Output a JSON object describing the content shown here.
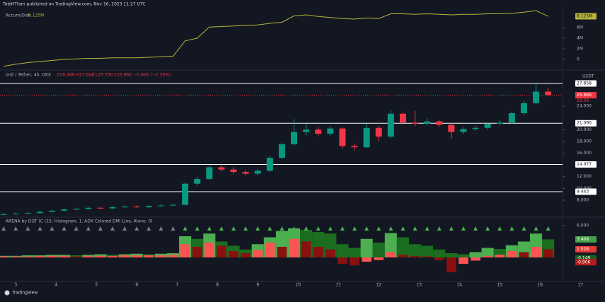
{
  "header": {
    "published": "TobiHTfam published on TradingView.com, Nov 16, 2023 11:27 UTC"
  },
  "chart_data": [
    {
      "type": "line",
      "legend": "Accum/Dist",
      "color": "#b8b43a",
      "x": [
        2.7,
        3.0,
        3.3,
        3.6,
        3.9,
        4.2,
        4.5,
        4.8,
        5.1,
        5.4,
        5.7,
        6.0,
        6.3,
        6.6,
        6.9,
        7.2,
        7.5,
        7.8,
        8.1,
        8.4,
        8.7,
        9.0,
        9.3,
        9.6,
        9.9,
        10.2,
        10.5,
        10.8,
        11.1,
        11.4,
        11.7,
        12.0,
        12.3,
        12.6,
        12.9,
        13.2,
        13.5,
        13.8,
        14.1,
        14.4,
        14.7,
        15.0,
        15.3,
        15.6,
        15.9,
        16.2
      ],
      "values": [
        -1300000,
        -900000,
        -600000,
        -400000,
        -200000,
        0,
        100000,
        200000,
        200000,
        300000,
        300000,
        300000,
        400000,
        500000,
        600000,
        3500000,
        4000000,
        6100000,
        6200000,
        6300000,
        6400000,
        6500000,
        6800000,
        7000000,
        8200000,
        8400000,
        8100000,
        7900000,
        7700000,
        7600000,
        7800000,
        7700000,
        8600000,
        8600000,
        8500000,
        8600000,
        8500000,
        8400000,
        8500000,
        8500000,
        8600000,
        8600000,
        8700000,
        8900000,
        9200000,
        8125000
      ],
      "last_value_label": "8.125M",
      "xlim": [
        2.61,
        17.61
      ],
      "ylim": [
        -1733333,
        9333333
      ],
      "yticks": [
        0,
        {
          "value": 2000000,
          "label": "2M"
        },
        {
          "value": 4000000,
          "label": "4M"
        },
        {
          "value": 6000000,
          "label": "6M"
        }
      ]
    },
    {
      "type": "candlestick",
      "legend": "ordi / Tether, 4h, OKX",
      "legend_ohlc": "O26.466 H27.048 L25.700 C25.860 −0.606 (−2.29%)",
      "currency": "USDT",
      "up_color": "#089981",
      "down_color": "#f23645",
      "x": [
        2.7,
        3.0,
        3.3,
        3.6,
        3.9,
        4.2,
        4.5,
        4.8,
        5.1,
        5.4,
        5.7,
        6.0,
        6.3,
        6.6,
        6.9,
        7.2,
        7.5,
        7.8,
        8.1,
        8.4,
        8.7,
        9.0,
        9.3,
        9.6,
        9.9,
        10.2,
        10.5,
        10.8,
        11.1,
        11.4,
        11.7,
        12.0,
        12.3,
        12.6,
        12.9,
        13.2,
        13.5,
        13.8,
        14.1,
        14.4,
        14.7,
        15.0,
        15.3,
        15.6,
        15.9,
        16.2
      ],
      "open": [
        5.5,
        5.6,
        5.7,
        5.8,
        6.0,
        6.2,
        6.4,
        6.5,
        6.7,
        6.6,
        6.8,
        6.9,
        6.8,
        7.0,
        7.1,
        7.2,
        10.8,
        11.6,
        13.6,
        13.2,
        12.8,
        12.5,
        13.0,
        15.2,
        17.5,
        19.6,
        20.0,
        19.3,
        20.2,
        17.2,
        17.0,
        20.3,
        18.8,
        22.7,
        21.2,
        21.0,
        21.4,
        20.8,
        19.6,
        20.1,
        20.3,
        21.0,
        21.2,
        22.8,
        24.5,
        26.466
      ],
      "high": [
        5.8,
        5.9,
        6.0,
        6.2,
        6.4,
        6.6,
        6.7,
        6.9,
        6.9,
        7.0,
        7.1,
        7.1,
        7.2,
        7.3,
        7.4,
        11.0,
        12.0,
        14.0,
        14.1,
        13.6,
        13.1,
        13.3,
        15.5,
        17.8,
        21.8,
        21.0,
        20.4,
        20.5,
        20.4,
        17.6,
        21.0,
        20.6,
        23.3,
        23.0,
        23.2,
        21.9,
        21.6,
        21.0,
        20.4,
        20.6,
        21.3,
        21.6,
        23.1,
        24.9,
        27.858,
        27.048
      ],
      "low": [
        5.4,
        5.5,
        5.6,
        5.7,
        5.9,
        6.1,
        6.3,
        6.4,
        6.5,
        6.5,
        6.7,
        6.7,
        6.7,
        6.9,
        7.0,
        7.1,
        10.5,
        11.4,
        12.9,
        12.5,
        12.2,
        12.2,
        12.8,
        15.0,
        17.3,
        19.0,
        18.9,
        19.0,
        16.8,
        16.5,
        16.8,
        18.0,
        18.5,
        20.9,
        20.6,
        20.7,
        20.5,
        18.5,
        19.3,
        19.8,
        20.0,
        20.7,
        21.0,
        22.5,
        24.3,
        25.7
      ],
      "close": [
        5.6,
        5.7,
        5.8,
        6.0,
        6.2,
        6.4,
        6.5,
        6.7,
        6.6,
        6.8,
        6.9,
        6.8,
        7.0,
        7.1,
        7.2,
        10.8,
        11.6,
        13.6,
        13.2,
        12.8,
        12.5,
        13.0,
        15.2,
        17.5,
        19.6,
        20.0,
        19.3,
        20.2,
        17.2,
        17.0,
        20.3,
        18.8,
        22.7,
        21.2,
        21.0,
        21.4,
        20.8,
        19.6,
        20.1,
        20.3,
        21.0,
        21.2,
        22.8,
        24.5,
        26.466,
        25.86
      ],
      "hline_color": "#ffffff",
      "hlines": [
        {
          "value": 27.858,
          "label": "27.858"
        },
        {
          "value": 21.09,
          "label": "21.090"
        },
        {
          "value": 14.077,
          "label": "14.077"
        },
        {
          "value": 9.443,
          "label": "9.443"
        }
      ],
      "current": {
        "value": 25.86,
        "label": "25.860",
        "countdown": "22:09"
      },
      "xlim": [
        2.61,
        17.61
      ],
      "ylim": [
        5.35,
        30.02
      ],
      "yticks": [
        {
          "value": 8,
          "label": "8.000"
        },
        {
          "value": 10,
          "label": "10.000"
        },
        {
          "value": 12,
          "label": "12.000"
        },
        {
          "value": 16,
          "label": "16.000"
        },
        {
          "value": 18,
          "label": "18.000"
        },
        {
          "value": 20,
          "label": "20.000"
        },
        {
          "value": 24,
          "label": "24.000"
        }
      ]
    },
    {
      "type": "bar",
      "legend": "ARENA by DGT (C (15, Histogram, 1, ADX Colored DMI Line, Alone, 0)",
      "x": [
        2.7,
        3.0,
        3.3,
        3.6,
        3.9,
        4.2,
        4.5,
        4.8,
        5.1,
        5.4,
        5.7,
        6.0,
        6.3,
        6.6,
        6.9,
        7.2,
        7.5,
        7.8,
        8.1,
        8.4,
        8.7,
        9.0,
        9.3,
        9.6,
        9.9,
        10.2,
        10.5,
        10.8,
        11.1,
        11.4,
        11.7,
        12.0,
        12.3,
        12.6,
        12.9,
        13.2,
        13.5,
        13.8,
        14.1,
        14.4,
        14.7,
        15.0,
        15.3,
        15.6,
        15.9,
        16.2
      ],
      "series": [
        {
          "color": "#4caf50",
          "color_falling": "#1b6e1f",
          "values": [
            0.3,
            0.3,
            0.4,
            0.4,
            0.5,
            0.5,
            0.4,
            0.5,
            0.6,
            0.5,
            0.6,
            0.7,
            0.6,
            0.7,
            0.8,
            4.0,
            3.5,
            4.5,
            3.0,
            2.2,
            1.5,
            2.5,
            3.8,
            5.0,
            5.5,
            5.2,
            4.8,
            4.5,
            2.5,
            1.8,
            3.5,
            2.8,
            4.6,
            3.8,
            2.5,
            2.2,
            1.5,
            0.8,
            0.6,
            1.0,
            1.8,
            1.6,
            2.3,
            3.0,
            4.5,
            3.408
          ]
        },
        {
          "color": "#ff5252",
          "color_falling": "#8b1010",
          "values": [
            0.2,
            0.2,
            0.2,
            0.3,
            0.3,
            0.3,
            0.2,
            0.3,
            0.3,
            0.3,
            0.4,
            0.4,
            0.4,
            0.4,
            0.5,
            2.5,
            2.0,
            2.8,
            2.2,
            1.2,
            0.8,
            1.4,
            2.8,
            2.0,
            3.5,
            3.0,
            2.0,
            1.5,
            -1.2,
            -1.5,
            -0.8,
            -0.5,
            1.0,
            0.5,
            0.3,
            0.2,
            -0.5,
            -2.8,
            -1.2,
            -0.6,
            0.3,
            0.5,
            1.2,
            1.0,
            2.0,
            1.528
          ]
        }
      ],
      "axis_labels": [
        {
          "value": 3.408,
          "label": "3.408",
          "color": "#43a047"
        },
        {
          "value": 1.528,
          "label": "1.528",
          "color": "#e53935"
        },
        {
          "value": -0.149,
          "label": "-0.149",
          "color": "#1b5e20"
        },
        {
          "value": -0.906,
          "label": "-0.906",
          "color": "#b71c1c"
        }
      ],
      "xlim": [
        2.61,
        17.61
      ],
      "ylim": [
        -4.4,
        6.933
      ],
      "yticks": [
        {
          "value": 6,
          "label": "6.000"
        }
      ],
      "xticks": [
        3,
        4,
        5,
        6,
        7,
        8,
        9,
        10,
        11,
        12,
        13,
        14,
        15,
        16,
        17
      ]
    }
  ],
  "footer": {
    "brand": "TradingView"
  }
}
